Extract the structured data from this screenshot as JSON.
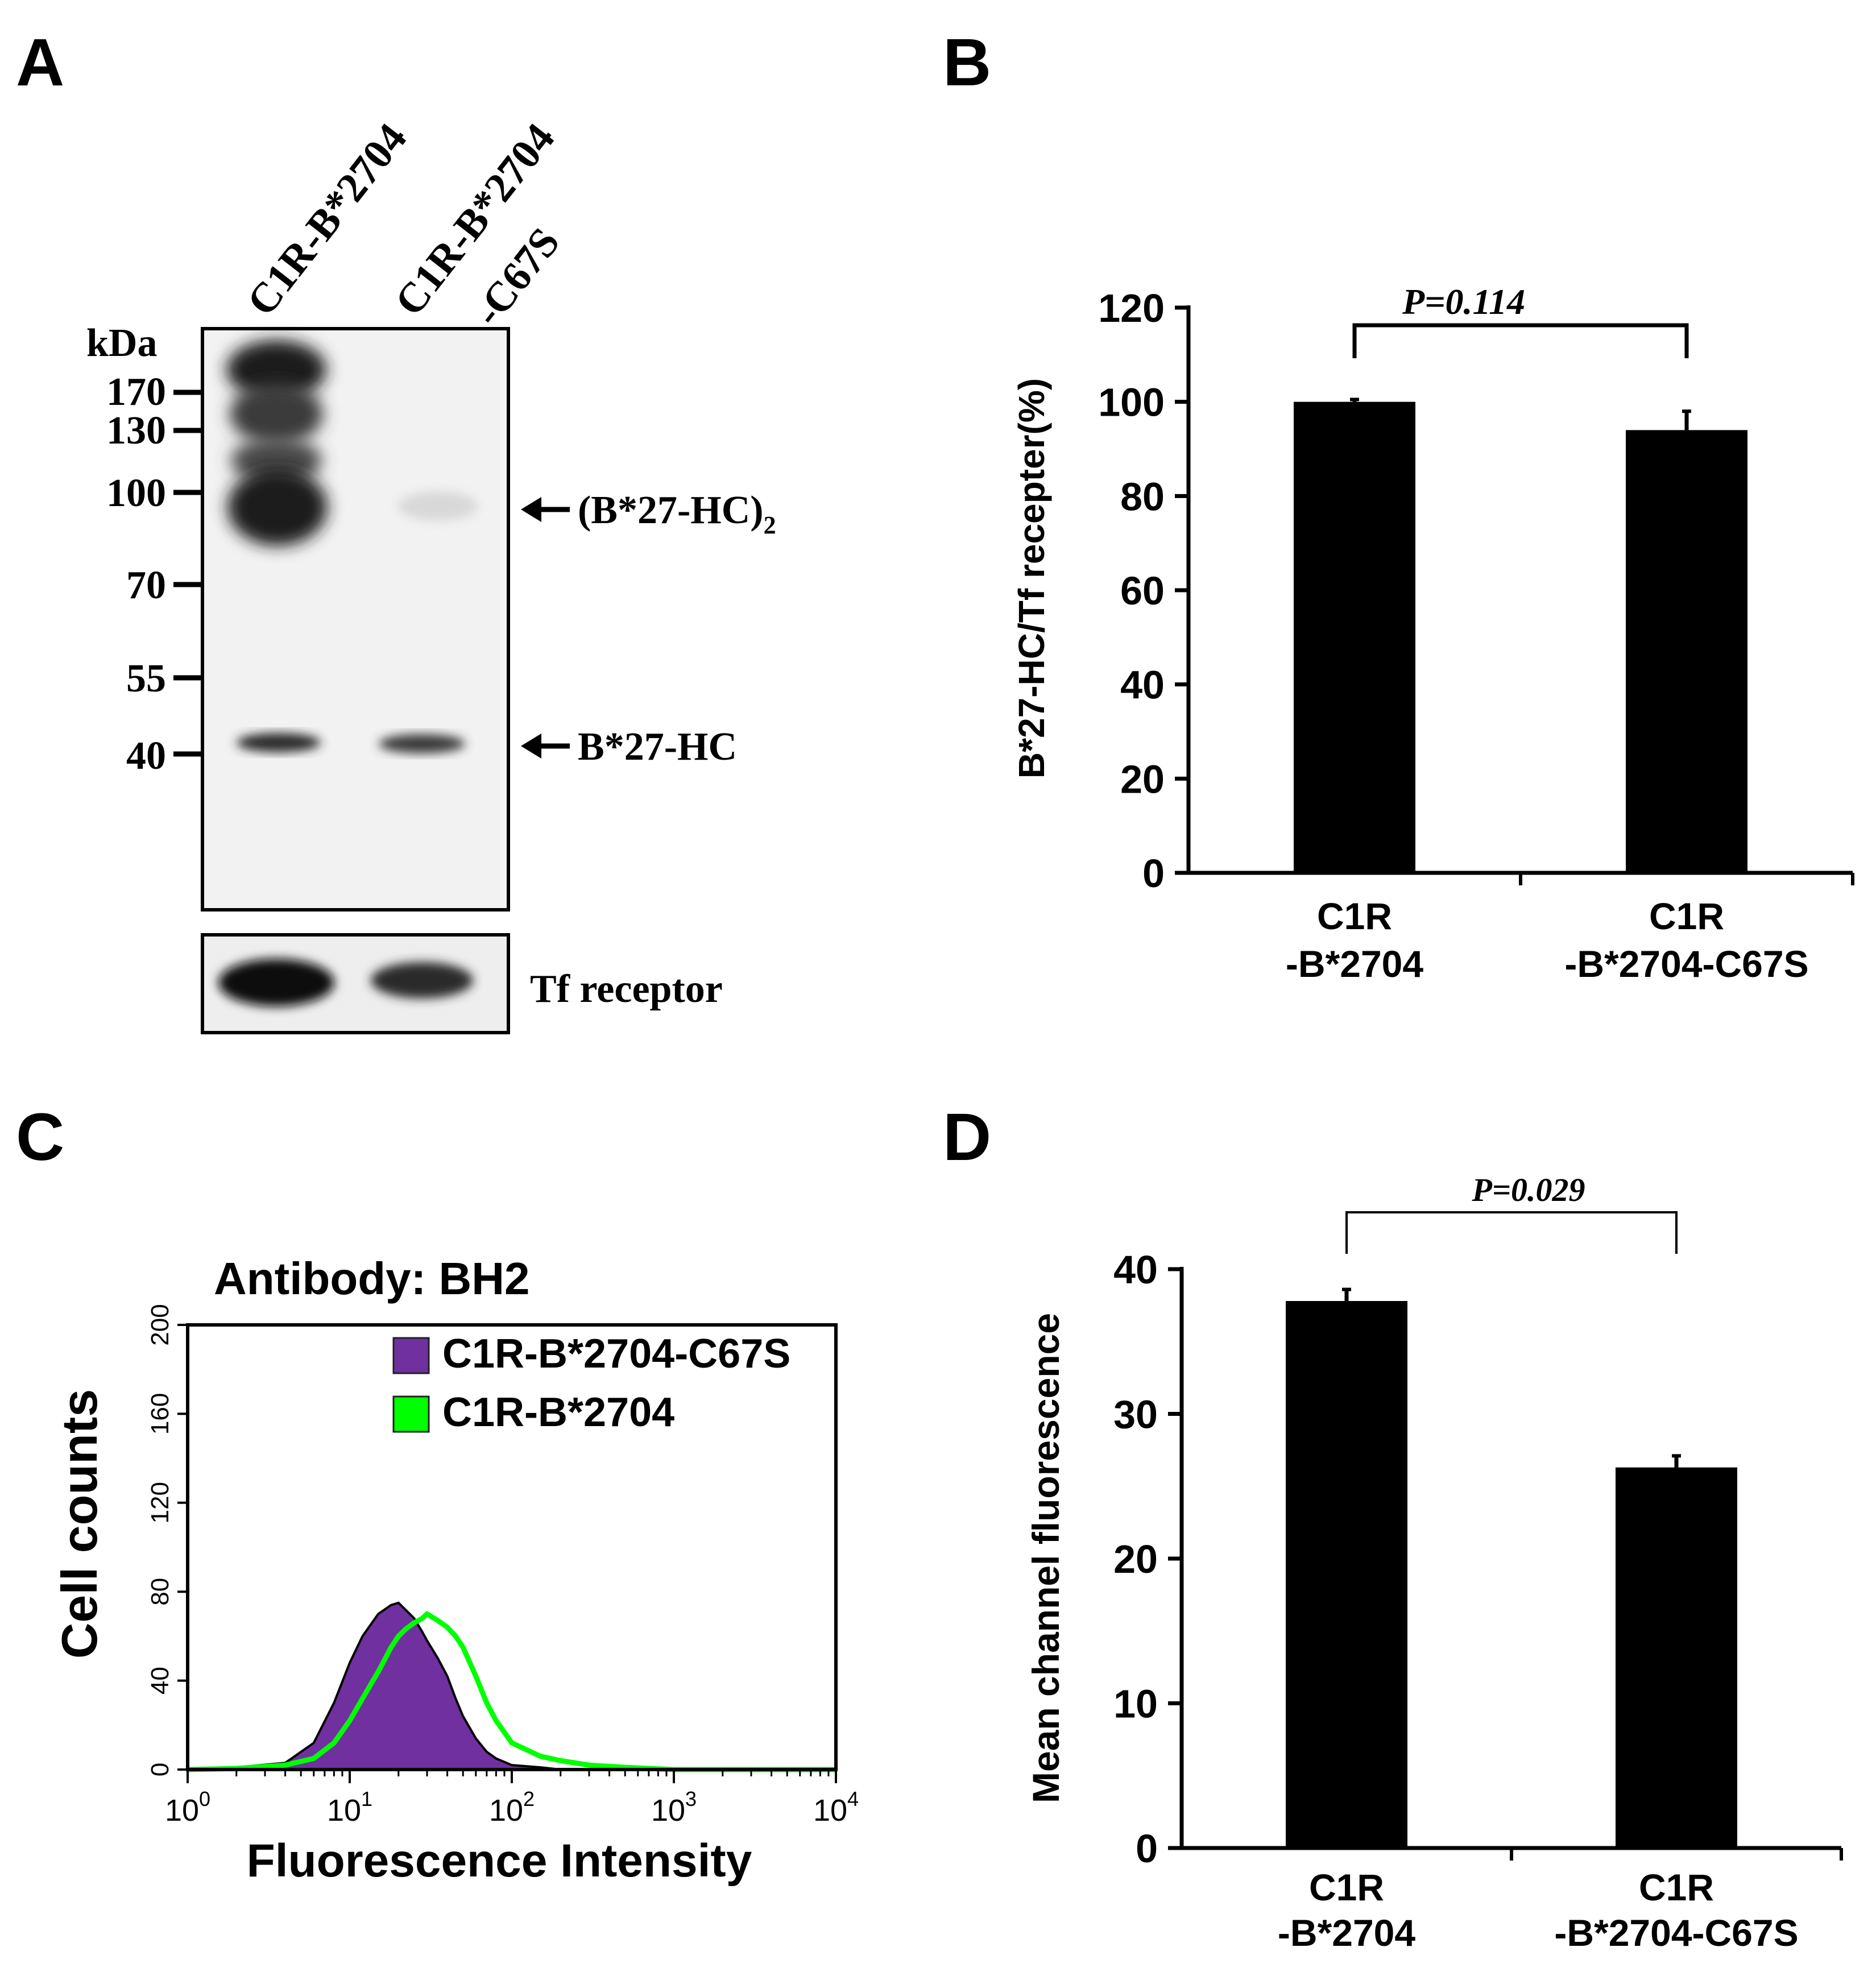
{
  "panels": {
    "a": "A",
    "b": "B",
    "c": "C",
    "d": "D"
  },
  "blot": {
    "lanes": [
      "C1R-B*2704",
      "C1R-B*2704",
      "-C67S"
    ],
    "kda_label": "kDa",
    "markers": [
      "170",
      "130",
      "100",
      "70",
      "55",
      "40"
    ],
    "dimer_label": "(B*27-HC)",
    "dimer_subscript": "2",
    "monomer_label": "B*27-HC",
    "loading_label": "Tf receptor"
  },
  "chart_data": [
    {
      "type": "bar",
      "panel": "B",
      "categories": [
        "C1R-B*2704",
        "C1R-B*2704-C67S"
      ],
      "category_lines": [
        [
          "C1R",
          "-B*2704"
        ],
        [
          "C1R",
          "-B*2704-C67S"
        ]
      ],
      "values": [
        100,
        94
      ],
      "errors": [
        0.5,
        4
      ],
      "ylabel": "B*27-HC/Tf recepter(%)",
      "ylim": [
        0,
        120
      ],
      "yticks": [
        "0",
        "20",
        "40",
        "60",
        "80",
        "100",
        "120"
      ],
      "significance": "P=0.114",
      "bar_color": "#000000"
    },
    {
      "type": "area",
      "panel": "C",
      "title": "Antibody: BH2",
      "xlabel": "Fluorescence Intensity",
      "ylabel": "Cell counts",
      "xscale": "log",
      "xlim": [
        1,
        10000
      ],
      "ylim": [
        0,
        200
      ],
      "yticks": [
        "0",
        "40",
        "80",
        "120",
        "160",
        "200"
      ],
      "xticks_base": "10",
      "xticks_exp": [
        "0",
        "1",
        "2",
        "3",
        "4"
      ],
      "legend_position": "top-right",
      "series": [
        {
          "name": "C1R-B*2704-C67S",
          "color": "#7030a0",
          "style": "filled",
          "x": [
            1,
            2,
            4,
            6,
            8,
            10,
            12,
            15,
            18,
            20,
            22,
            25,
            28,
            30,
            35,
            40,
            45,
            50,
            60,
            70,
            80,
            100,
            150,
            200,
            500,
            1000,
            10000
          ],
          "y": [
            0,
            1,
            3,
            12,
            30,
            48,
            60,
            70,
            74,
            75,
            72,
            68,
            62,
            58,
            50,
            42,
            32,
            24,
            14,
            8,
            5,
            2,
            1,
            0,
            0,
            0,
            0
          ]
        },
        {
          "name": "C1R-B*2704",
          "color": "#00ff00",
          "style": "line",
          "x": [
            1,
            2,
            4,
            6,
            8,
            10,
            12,
            15,
            18,
            20,
            22,
            25,
            28,
            30,
            35,
            40,
            45,
            50,
            60,
            70,
            80,
            100,
            150,
            200,
            300,
            500,
            1000,
            10000
          ],
          "y": [
            0,
            0.5,
            2,
            5,
            12,
            22,
            32,
            44,
            55,
            60,
            63,
            66,
            68,
            70,
            67,
            64,
            60,
            55,
            42,
            30,
            22,
            12,
            6,
            4,
            2,
            1,
            0,
            0
          ]
        }
      ]
    },
    {
      "type": "bar",
      "panel": "D",
      "categories": [
        "C1R-B*2704",
        "C1R-B*2704-C67S"
      ],
      "category_lines": [
        [
          "C1R",
          "-B*2704"
        ],
        [
          "C1R",
          "-B*2704-C67S"
        ]
      ],
      "values": [
        37.8,
        26.3
      ],
      "errors": [
        0.8,
        0.8
      ],
      "ylabel": "Mean channel fluorescence",
      "ylim": [
        0,
        40
      ],
      "yticks": [
        "0",
        "10",
        "20",
        "30",
        "40"
      ],
      "significance": "P=0.029",
      "bar_color": "#000000"
    }
  ]
}
